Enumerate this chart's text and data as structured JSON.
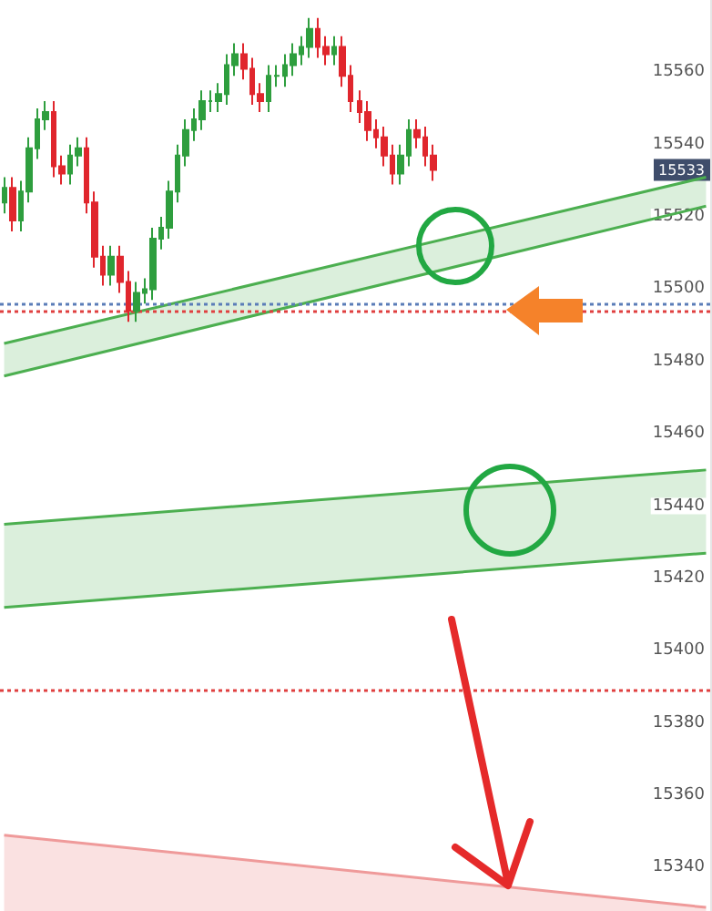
{
  "chart_data": {
    "type": "candlestick",
    "categories": [
      null,
      null,
      null,
      null,
      null,
      null,
      null,
      null,
      null,
      null,
      null,
      null,
      null,
      null,
      null,
      null,
      null,
      null,
      null,
      null,
      null,
      null,
      null,
      null,
      null,
      null,
      null,
      null,
      null,
      null,
      null,
      null,
      null,
      null,
      null,
      null,
      null,
      null,
      null,
      null,
      null,
      null,
      null,
      null,
      null,
      null,
      null,
      null,
      null,
      null,
      null,
      null,
      null,
      null,
      null,
      null,
      null,
      null,
      null,
      null,
      null,
      null,
      null,
      null,
      null,
      null,
      null,
      null,
      null,
      null,
      null,
      null,
      null,
      null,
      null,
      null,
      null,
      null,
      null,
      null,
      null,
      null,
      null,
      null,
      null,
      null
    ],
    "ohlc": [
      [
        15524,
        15531,
        15521,
        15528
      ],
      [
        15528,
        15531,
        15516,
        15519
      ],
      [
        15519,
        15530,
        15516,
        15527
      ],
      [
        15527,
        15542,
        15524,
        15539
      ],
      [
        15539,
        15550,
        15536,
        15547
      ],
      [
        15547,
        15552,
        15544,
        15549
      ],
      [
        15549,
        15552,
        15531,
        15534
      ],
      [
        15534,
        15537,
        15529,
        15532
      ],
      [
        15532,
        15540,
        15529,
        15537
      ],
      [
        15537,
        15542,
        15534,
        15539
      ],
      [
        15539,
        15542,
        15521,
        15524
      ],
      [
        15524,
        15527,
        15506,
        15509
      ],
      [
        15509,
        15512,
        15501,
        15504
      ],
      [
        15504,
        15512,
        15501,
        15509
      ],
      [
        15509,
        15512,
        15499,
        15502
      ],
      [
        15502,
        15505,
        15491,
        15494
      ],
      [
        15494,
        15502,
        15491,
        15499
      ],
      [
        15499,
        15503,
        15496,
        15500
      ],
      [
        15500,
        15517,
        15497,
        15514
      ],
      [
        15514,
        15520,
        15511,
        15517
      ],
      [
        15517,
        15530,
        15514,
        15527
      ],
      [
        15527,
        15540,
        15524,
        15537
      ],
      [
        15537,
        15547,
        15534,
        15544
      ],
      [
        15544,
        15550,
        15541,
        15547
      ],
      [
        15547,
        15555,
        15544,
        15552
      ],
      [
        15552,
        15555,
        15549,
        15552
      ],
      [
        15552,
        15557,
        15549,
        15554
      ],
      [
        15554,
        15565,
        15551,
        15562
      ],
      [
        15562,
        15568,
        15559,
        15565
      ],
      [
        15565,
        15568,
        15558,
        15561
      ],
      [
        15561,
        15564,
        15551,
        15554
      ],
      [
        15554,
        15557,
        15549,
        15552
      ],
      [
        15552,
        15562,
        15549,
        15559
      ],
      [
        15559,
        15562,
        15556,
        15559
      ],
      [
        15559,
        15565,
        15556,
        15562
      ],
      [
        15562,
        15568,
        15559,
        15565
      ],
      [
        15565,
        15570,
        15562,
        15567
      ],
      [
        15567,
        15575,
        15564,
        15572
      ],
      [
        15572,
        15575,
        15564,
        15567
      ],
      [
        15567,
        15570,
        15562,
        15565
      ],
      [
        15565,
        15570,
        15562,
        15567
      ],
      [
        15567,
        15570,
        15556,
        15559
      ],
      [
        15559,
        15562,
        15549,
        15552
      ],
      [
        15552,
        15555,
        15546,
        15549
      ],
      [
        15549,
        15552,
        15541,
        15544
      ],
      [
        15544,
        15547,
        15539,
        15542
      ],
      [
        15542,
        15545,
        15534,
        15537
      ],
      [
        15537,
        15540,
        15529,
        15532
      ],
      [
        15532,
        15540,
        15529,
        15537
      ],
      [
        15537,
        15547,
        15534,
        15544
      ],
      [
        15544,
        15547,
        15539,
        15542
      ],
      [
        15542,
        15545,
        15534,
        15537
      ],
      [
        15537,
        15540,
        15530,
        15533
      ],
      null,
      null,
      null,
      null,
      null,
      null,
      null,
      null,
      null,
      null,
      null,
      null,
      null,
      null,
      null,
      null,
      null,
      null,
      null,
      null,
      null,
      null,
      null,
      null,
      null,
      null,
      null,
      null,
      null,
      null,
      null,
      null,
      null
    ],
    "series": [
      {
        "type": "line",
        "color": "#4caf50",
        "values": [
          15485,
          null,
          null,
          null,
          null,
          null,
          null,
          null,
          null,
          null,
          null,
          null,
          null,
          null,
          null,
          null,
          null,
          null,
          null,
          null,
          null,
          null,
          null,
          null,
          null,
          null,
          null,
          null,
          null,
          null,
          null,
          null,
          null,
          null,
          null,
          null,
          null,
          null,
          null,
          null,
          null,
          null,
          null,
          null,
          null,
          null,
          null,
          null,
          null,
          null,
          null,
          null,
          null,
          null,
          null,
          null,
          null,
          null,
          null,
          null,
          null,
          null,
          null,
          null,
          null,
          null,
          null,
          null,
          null,
          null,
          null,
          null,
          null,
          null,
          null,
          null,
          null,
          null,
          null,
          null,
          null,
          null,
          null,
          null,
          null,
          15531
        ]
      },
      {
        "type": "line",
        "color": "#4caf50",
        "values": [
          15476,
          null,
          null,
          null,
          null,
          null,
          null,
          null,
          null,
          null,
          null,
          null,
          null,
          null,
          null,
          null,
          null,
          null,
          null,
          null,
          null,
          null,
          null,
          null,
          null,
          null,
          null,
          null,
          null,
          null,
          null,
          null,
          null,
          null,
          null,
          null,
          null,
          null,
          null,
          null,
          null,
          null,
          null,
          null,
          null,
          null,
          null,
          null,
          null,
          null,
          null,
          null,
          null,
          null,
          null,
          null,
          null,
          null,
          null,
          null,
          null,
          null,
          null,
          null,
          null,
          null,
          null,
          null,
          null,
          null,
          null,
          null,
          null,
          null,
          null,
          null,
          null,
          null,
          null,
          null,
          null,
          null,
          null,
          null,
          null,
          15523
        ]
      },
      {
        "type": "line",
        "color": "#4caf50",
        "values": [
          15435,
          null,
          null,
          null,
          null,
          null,
          null,
          null,
          null,
          null,
          null,
          null,
          null,
          null,
          null,
          null,
          null,
          null,
          null,
          null,
          null,
          null,
          null,
          null,
          null,
          null,
          null,
          null,
          null,
          null,
          null,
          null,
          null,
          null,
          null,
          null,
          null,
          null,
          null,
          null,
          null,
          null,
          null,
          null,
          null,
          null,
          null,
          null,
          null,
          null,
          null,
          null,
          null,
          null,
          null,
          null,
          null,
          null,
          null,
          null,
          null,
          null,
          null,
          null,
          null,
          null,
          null,
          null,
          null,
          null,
          null,
          null,
          null,
          null,
          null,
          null,
          null,
          null,
          null,
          null,
          null,
          null,
          null,
          null,
          null,
          15450
        ]
      },
      {
        "type": "line",
        "color": "#4caf50",
        "values": [
          15412,
          null,
          null,
          null,
          null,
          null,
          null,
          null,
          null,
          null,
          null,
          null,
          null,
          null,
          null,
          null,
          null,
          null,
          null,
          null,
          null,
          null,
          null,
          null,
          null,
          null,
          null,
          null,
          null,
          null,
          null,
          null,
          null,
          null,
          null,
          null,
          null,
          null,
          null,
          null,
          null,
          null,
          null,
          null,
          null,
          null,
          null,
          null,
          null,
          null,
          null,
          null,
          null,
          null,
          null,
          null,
          null,
          null,
          null,
          null,
          null,
          null,
          null,
          null,
          null,
          null,
          null,
          null,
          null,
          null,
          null,
          null,
          null,
          null,
          null,
          null,
          null,
          null,
          null,
          null,
          null,
          null,
          null,
          null,
          null,
          15427
        ]
      },
      {
        "type": "area",
        "color": "#ef9a9a",
        "values": [
          15349,
          null,
          null,
          null,
          null,
          null,
          null,
          null,
          null,
          null,
          null,
          null,
          null,
          null,
          null,
          null,
          null,
          null,
          null,
          null,
          null,
          null,
          null,
          null,
          null,
          null,
          null,
          null,
          null,
          null,
          null,
          null,
          null,
          null,
          null,
          null,
          null,
          null,
          null,
          null,
          null,
          null,
          null,
          null,
          null,
          null,
          null,
          null,
          null,
          null,
          null,
          null,
          null,
          null,
          null,
          null,
          null,
          null,
          null,
          null,
          null,
          null,
          null,
          null,
          null,
          null,
          null,
          null,
          null,
          null,
          null,
          null,
          null,
          null,
          null,
          null,
          null,
          null,
          null,
          null,
          null,
          null,
          null,
          null,
          null,
          15329
        ]
      }
    ],
    "ref_lines": [
      {
        "axis": "y",
        "value": 15496,
        "color": "#5b7db8",
        "line_style": "dotted"
      },
      {
        "axis": "y",
        "value": 15494,
        "color": "#e04040",
        "line_style": "dotted"
      },
      {
        "axis": "y",
        "value": 15389,
        "color": "#e04040",
        "line_style": "dotted"
      }
    ],
    "annotations": [
      "15533"
    ],
    "ylim": [
      15328,
      15580
    ],
    "yticks": [
      15340,
      15360,
      15380,
      15400,
      15420,
      15440,
      15460,
      15480,
      15500,
      15520,
      15540,
      15560
    ],
    "tick_labels": "y",
    "grid": false
  }
}
